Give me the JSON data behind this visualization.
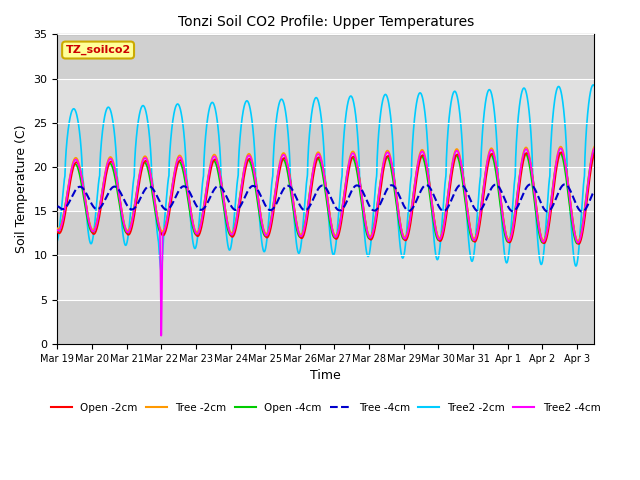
{
  "title": "Tonzi Soil CO2 Profile: Upper Temperatures",
  "xlabel": "Time",
  "ylabel": "Soil Temperature (C)",
  "ylim": [
    0,
    35
  ],
  "annotation_text": "TZ_soilco2",
  "annotation_color": "#cc0000",
  "annotation_bg": "#ffff99",
  "annotation_edge": "#ccaa00",
  "xtick_labels": [
    "Mar 19",
    "Mar 20",
    "Mar 21",
    "Mar 22",
    "Mar 23",
    "Mar 24",
    "Mar 25",
    "Mar 26",
    "Mar 27",
    "Mar 28",
    "Mar 29",
    "Mar 30",
    "Mar 31",
    "Apr 1",
    "Apr 2",
    "Apr 3"
  ],
  "xtick_positions": [
    0,
    1,
    2,
    3,
    4,
    5,
    6,
    7,
    8,
    9,
    10,
    11,
    12,
    13,
    14,
    15
  ],
  "ytick_labels": [
    "0",
    "5",
    "10",
    "15",
    "20",
    "25",
    "30",
    "35"
  ],
  "ytick_positions": [
    0,
    5,
    10,
    15,
    20,
    25,
    30,
    35
  ],
  "figsize": [
    6.4,
    4.8
  ],
  "dpi": 100
}
